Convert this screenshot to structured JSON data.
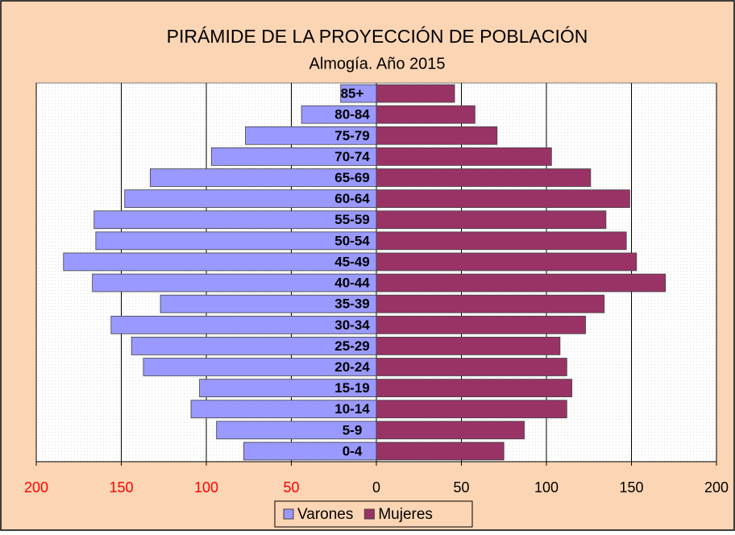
{
  "chart_data": {
    "type": "pyramid",
    "title": "PIRÁMIDE DE LA PROYECCIÓN DE POBLACIÓN",
    "subtitle": "Almogía. Año 2015",
    "categories": [
      "85+",
      "80-84",
      "75-79",
      "70-74",
      "65-69",
      "60-64",
      "55-59",
      "50-54",
      "45-49",
      "40-44",
      "35-39",
      "30-34",
      "25-29",
      "20-24",
      "15-19",
      "10-14",
      "5-9",
      "0-4"
    ],
    "series": [
      {
        "name": "Varones",
        "color": "#9999ff",
        "side": "left",
        "values": [
          21,
          44,
          77,
          97,
          133,
          148,
          166,
          165,
          184,
          167,
          127,
          156,
          144,
          137,
          104,
          109,
          94,
          78
        ]
      },
      {
        "name": "Mujeres",
        "color": "#993366",
        "side": "right",
        "values": [
          46,
          58,
          71,
          103,
          126,
          149,
          135,
          147,
          153,
          170,
          134,
          123,
          108,
          112,
          115,
          112,
          87,
          75
        ]
      }
    ],
    "xlim": [
      -200,
      200
    ],
    "xticks": [
      {
        "value": -200,
        "label": "200"
      },
      {
        "value": -150,
        "label": "150"
      },
      {
        "value": -100,
        "label": "100"
      },
      {
        "value": -50,
        "label": "50"
      },
      0,
      50,
      100,
      150,
      200
    ],
    "negative_tick_color": "#ff0000",
    "grid": true,
    "legend": "bottom"
  }
}
